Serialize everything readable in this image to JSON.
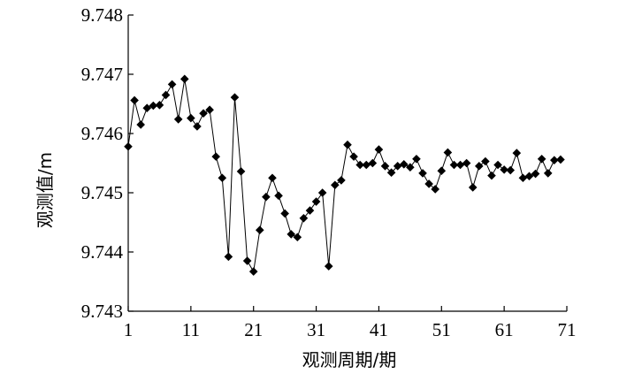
{
  "chart_data": {
    "type": "line",
    "title": "",
    "xlabel": "观测周期/期",
    "ylabel": "观测值/m",
    "xlim": [
      1,
      71
    ],
    "ylim": [
      9.743,
      9.748
    ],
    "x_ticks": [
      1,
      11,
      21,
      31,
      41,
      51,
      61,
      71
    ],
    "x_tick_labels": [
      "1",
      "11",
      "21",
      "31",
      "41",
      "51",
      "61",
      "71"
    ],
    "y_ticks": [
      9.743,
      9.744,
      9.745,
      9.746,
      9.747,
      9.748
    ],
    "y_tick_labels": [
      "9.743",
      "9.744",
      "9.745",
      "9.746",
      "9.747",
      "9.748"
    ],
    "grid": false,
    "legend": "none",
    "marker": "diamond",
    "line_color": "#000000",
    "marker_color": "#000000",
    "series": [
      {
        "x": [
          1,
          2,
          3,
          4,
          5,
          6,
          7,
          8,
          9,
          10,
          11,
          12,
          13,
          14,
          15,
          16,
          17,
          18,
          19,
          20,
          21,
          22,
          23,
          24,
          25,
          26,
          27,
          28,
          29,
          30,
          31,
          32,
          33,
          34,
          35,
          36,
          37,
          38,
          39,
          40,
          41,
          42,
          43,
          44,
          45,
          46,
          47,
          48,
          49,
          50,
          51,
          52,
          53,
          54,
          55,
          56,
          57,
          58,
          59,
          60,
          61,
          62,
          63,
          64,
          65,
          66,
          67,
          68,
          69,
          70
        ],
        "y": [
          9.74578,
          9.74656,
          9.74615,
          9.74643,
          9.74647,
          9.74648,
          9.74665,
          9.74683,
          9.74624,
          9.74692,
          9.74626,
          9.74612,
          9.74634,
          9.7464,
          9.74561,
          9.74525,
          9.74392,
          9.74661,
          9.74536,
          9.74385,
          9.74367,
          9.74437,
          9.74493,
          9.74525,
          9.74495,
          9.74465,
          9.7443,
          9.74425,
          9.74457,
          9.7447,
          9.74485,
          9.745,
          9.74376,
          9.74513,
          9.74521,
          9.74581,
          9.74561,
          9.74547,
          9.74547,
          9.7455,
          9.74573,
          9.74545,
          9.74534,
          9.74545,
          9.74548,
          9.74543,
          9.74557,
          9.74533,
          9.74515,
          9.74506,
          9.74537,
          9.74568,
          9.74547,
          9.74547,
          9.7455,
          9.74509,
          9.74545,
          9.74553,
          9.74529,
          9.74547,
          9.74539,
          9.74538,
          9.74567,
          9.74525,
          9.74528,
          9.74532,
          9.74557,
          9.74533,
          9.74555,
          9.74556
        ]
      }
    ]
  }
}
